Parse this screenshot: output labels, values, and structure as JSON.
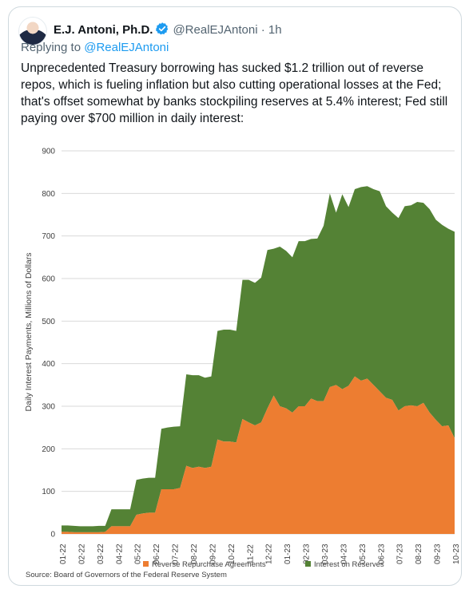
{
  "tweet": {
    "author_name": "E.J. Antoni, Ph.D.",
    "handle": "@RealEJAntoni",
    "separator": "·",
    "time": "1h",
    "reply_prefix": "Replying to",
    "reply_to": "@RealEJAntoni",
    "text": "Unprecedented Treasury borrowing has sucked $1.2 trillion out of reverse repos, which is fueling inflation but also cutting operational losses at the Fed; that's offset somewhat by banks stockpiling reserves at 5.4% interest; Fed still paying over $700 million in daily interest:",
    "avatar_icon": "avatar-portrait",
    "verified_icon": "verified-badge-icon",
    "colors": {
      "text": "#0f1419",
      "secondary": "#536471",
      "link": "#1d9bf0"
    }
  },
  "chart_data": {
    "type": "area",
    "stacked": true,
    "ylabel": "Daily Interest Payments, Millions of Dollars",
    "xlabel": "",
    "ylim": [
      0,
      900
    ],
    "yticks": [
      0,
      100,
      200,
      300,
      400,
      500,
      600,
      700,
      800,
      900
    ],
    "grid": true,
    "legend_position": "bottom",
    "source": "Source: Board of Governors of the Federal Reserve System",
    "x_tick_labels": [
      "01-22",
      "02-22",
      "03-22",
      "04-22",
      "05-22",
      "06-22",
      "07-22",
      "08-22",
      "09-22",
      "10-22",
      "11-22",
      "12-22",
      "01-23",
      "02-23",
      "03-23",
      "04-23",
      "05-23",
      "06-23",
      "07-23",
      "08-23",
      "09-23",
      "10-23"
    ],
    "series": [
      {
        "name": "Reverse Repurchase Agreements",
        "color": "#ed7d31",
        "values": [
          5,
          5,
          4,
          4,
          4,
          4,
          4,
          5,
          18,
          18,
          18,
          18,
          45,
          48,
          50,
          50,
          105,
          105,
          105,
          108,
          160,
          155,
          158,
          155,
          158,
          222,
          217,
          217,
          215,
          270,
          262,
          255,
          262,
          295,
          325,
          300,
          295,
          285,
          300,
          300,
          318,
          312,
          312,
          345,
          350,
          340,
          348,
          370,
          360,
          365,
          350,
          335,
          320,
          315,
          290,
          300,
          302,
          300,
          308,
          285,
          268,
          253,
          255,
          225
        ]
      },
      {
        "name": "Interest on Reserves",
        "color": "#548235",
        "values": [
          15,
          15,
          15,
          14,
          14,
          14,
          15,
          14,
          40,
          40,
          40,
          40,
          82,
          82,
          82,
          82,
          142,
          145,
          147,
          145,
          215,
          218,
          215,
          212,
          212,
          255,
          263,
          263,
          262,
          327,
          335,
          335,
          340,
          372,
          345,
          375,
          370,
          365,
          388,
          388,
          375,
          382,
          412,
          455,
          405,
          458,
          420,
          440,
          455,
          452,
          460,
          470,
          450,
          440,
          452,
          470,
          470,
          480,
          470,
          478,
          470,
          473,
          462,
          485
        ]
      }
    ]
  }
}
